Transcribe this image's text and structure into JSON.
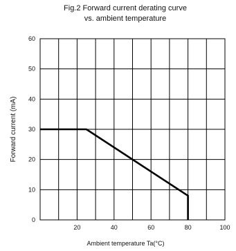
{
  "chart_data": {
    "type": "line",
    "title_line1": "Fig.2 Forward current derating curve",
    "title_line2": "vs. ambient temperature",
    "xlabel": "Ambient temperature Ta(°C)",
    "ylabel": "Forward current (mA)",
    "xlim": [
      0,
      100
    ],
    "ylim": [
      0,
      60
    ],
    "x_ticks": [
      20,
      40,
      60,
      80,
      100
    ],
    "y_ticks": [
      0,
      10,
      20,
      30,
      40,
      50,
      60
    ],
    "x_tick_labels": [
      "20",
      "40",
      "60",
      "80",
      "100"
    ],
    "y_tick_labels": [
      "0",
      "10",
      "20",
      "30",
      "40",
      "50",
      "60"
    ],
    "x_grid_step": 10,
    "y_grid_step": 10,
    "grid": true,
    "series": [
      {
        "x": [
          0,
          25,
          80,
          80
        ],
        "y": [
          30,
          30,
          8,
          0
        ]
      }
    ],
    "colors": {
      "line": "#000000",
      "grid": "#000000"
    }
  }
}
